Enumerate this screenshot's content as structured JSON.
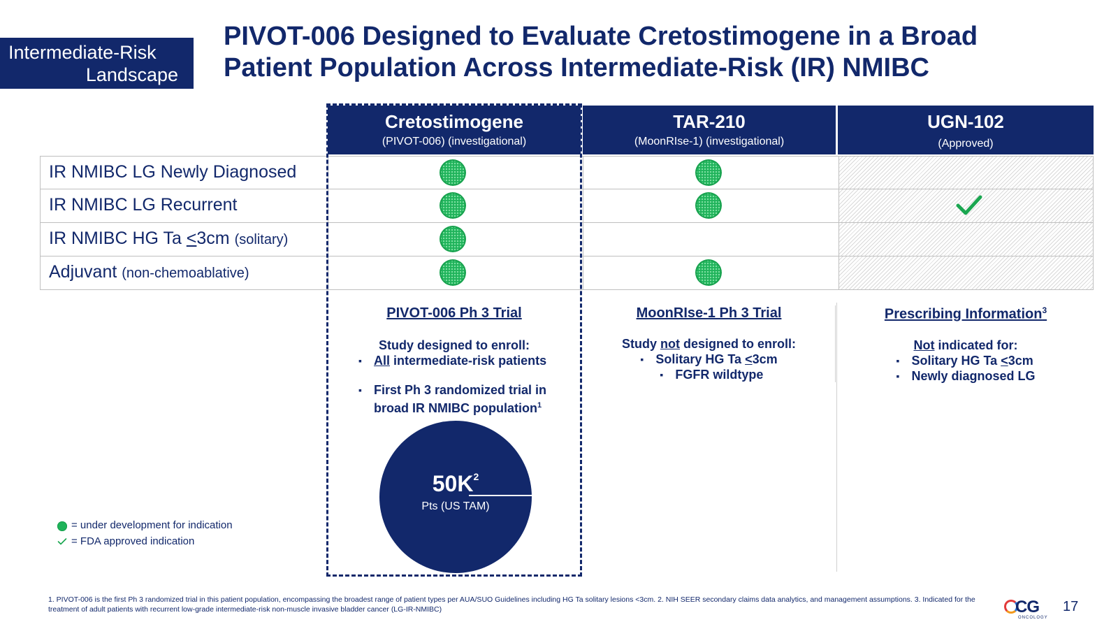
{
  "tag": {
    "line1": "Intermediate-Risk",
    "line2": "Landscape"
  },
  "title": {
    "line1": "PIVOT-006 Designed to Evaluate Cretostimogene in a Broad",
    "line2": "Patient Population Across Intermediate-Risk (IR) NMIBC"
  },
  "columns": [
    {
      "name": "Cretostimogene",
      "sub": "(PIVOT-006) (investigational)"
    },
    {
      "name": "TAR-210",
      "sub": "(MoonRIse-1) (investigational)"
    },
    {
      "name": "UGN-102",
      "sub": "(Approved)"
    }
  ],
  "rows": [
    {
      "label": "IR NMIBC LG Newly Diagnosed",
      "label_small": "",
      "cells": [
        "dot",
        "dot",
        "hatched"
      ]
    },
    {
      "label": "IR NMIBC LG Recurrent",
      "label_small": "",
      "cells": [
        "dot",
        "dot",
        "check"
      ]
    },
    {
      "label": "IR NMIBC HG Ta ",
      "label_le": "<",
      "label_rest": "3cm",
      "label_small": "(solitary)",
      "cells": [
        "dot",
        "",
        "hatched"
      ]
    },
    {
      "label": "Adjuvant",
      "label_small": "(non-chemoablative)",
      "cells": [
        "dot",
        "dot",
        "hatched"
      ]
    }
  ],
  "bottom": {
    "col1": {
      "heading": "PIVOT-006 Ph 3 Trial",
      "lead": "Study designed to enroll:",
      "b1_u": "All",
      "b1_rest": " intermediate-risk patients",
      "b2": "First Ph 3 randomized trial in broad IR NMIBC population",
      "b2_sup": "1",
      "circle_value": "50K",
      "circle_sup": "2",
      "circle_label": "Pts (US TAM)"
    },
    "col2": {
      "heading": "MoonRIse-1 Ph 3 Trial",
      "lead_a": "Study ",
      "lead_u": "not",
      "lead_b": " designed to enroll:",
      "b1": "Solitary HG Ta ",
      "b1_le": "<",
      "b1_rest": "3cm",
      "b2": "FGFR wildtype"
    },
    "col3": {
      "heading": "Prescribing Information",
      "heading_sup": "3",
      "lead_u": "Not",
      "lead_b": " indicated for:",
      "b1": "Solitary HG Ta ",
      "b1_le": "<",
      "b1_rest": "3cm",
      "b2": "Newly diagnosed LG"
    }
  },
  "legend": {
    "dot": "= under development for indication",
    "check": "= FDA approved indication"
  },
  "footnote": "1. PIVOT-006 is the first Ph 3 randomized trial in this patient population, encompassing the broadest range of patient types per AUA/SUO Guidelines including HG Ta solitary lesions <3cm. 2. NIH SEER secondary claims data analytics, and management assumptions. 3. Indicated for the treatment of adult patients with recurrent low-grade intermediate-risk non-muscle invasive bladder cancer (LG-IR-NMIBC)",
  "logo": {
    "text": "CG",
    "sub": "ONCOLOGY"
  },
  "page_number": "17",
  "colors": {
    "navy": "#12286b",
    "green": "#1fb35a",
    "check_green": "#1aa650"
  }
}
